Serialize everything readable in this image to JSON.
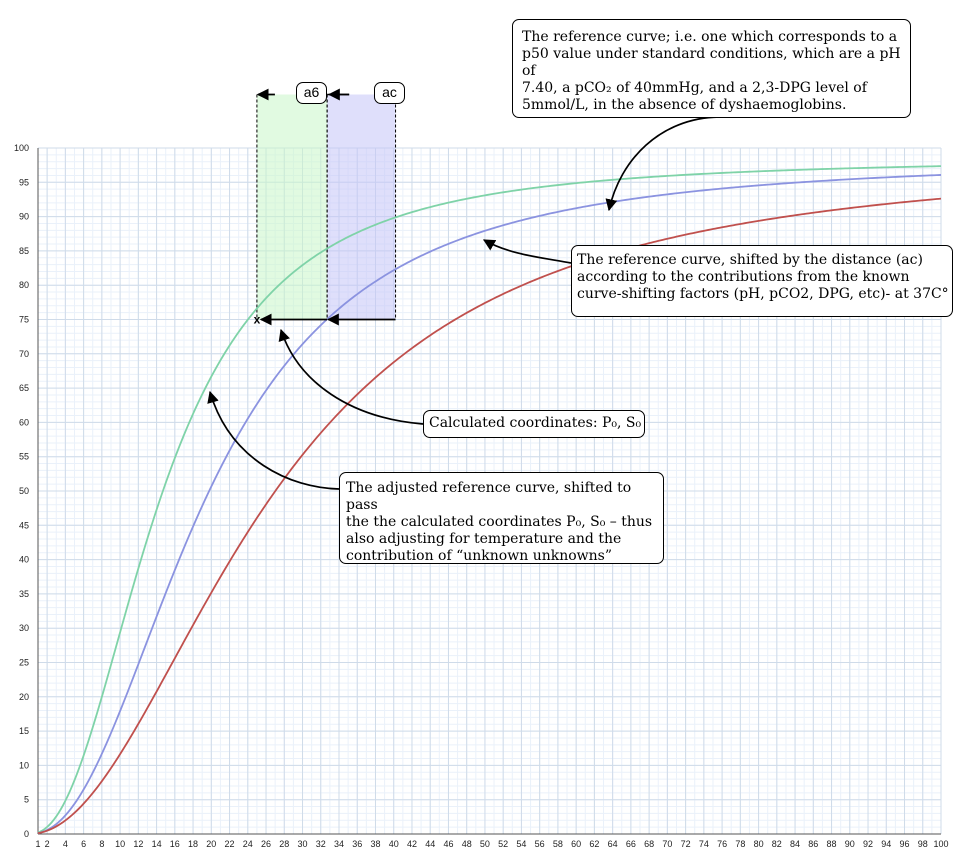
{
  "chart_data": {
    "type": "line",
    "xlim": [
      1,
      100
    ],
    "ylim": [
      0,
      100
    ],
    "x_ticks": [
      1,
      2,
      4,
      6,
      8,
      10,
      12,
      14,
      16,
      18,
      20,
      22,
      24,
      26,
      28,
      30,
      32,
      34,
      36,
      38,
      40,
      42,
      44,
      46,
      48,
      50,
      52,
      54,
      56,
      58,
      60,
      62,
      64,
      66,
      68,
      70,
      72,
      74,
      76,
      78,
      80,
      82,
      84,
      86,
      88,
      90,
      92,
      94,
      96,
      98,
      100
    ],
    "y_ticks": [
      0,
      5,
      10,
      15,
      20,
      25,
      30,
      35,
      40,
      45,
      50,
      55,
      60,
      65,
      70,
      75,
      80,
      85,
      90,
      95,
      100
    ],
    "grid": true,
    "series": [
      {
        "color": "#7fd3a8",
        "p50": 14.5,
        "n": 2.3,
        "smax": 98.5
      },
      {
        "color": "#8b93e0",
        "p50": 19.5,
        "n": 2.25,
        "smax": 98.5
      },
      {
        "color": "#c0504d",
        "p50": 26.7,
        "n": 2.05,
        "smax": 98.8
      }
    ],
    "marker": {
      "x": 25,
      "y": 75,
      "label": "x"
    },
    "shift_a6": {
      "x_from": 25,
      "x_to": 32.7,
      "label": "a6",
      "color": "#c9f5c9"
    },
    "shift_ac": {
      "x_from": 32.7,
      "x_to": 40.2,
      "label": "ac",
      "color": "#c4c4f7"
    },
    "band_top_y": 107.8,
    "annotations": {
      "reference_curve": [
        "The reference curve; i.e. one which corresponds to a",
        "p50 value under standard conditions, which are a pH of",
        "7.40, a pCO₂ of 40mmHg, and a 2,3-DPG level of",
        "5mmol/L, in the absence of dyshaemoglobins."
      ],
      "shifted_curve": [
        "The reference curve, shifted by the distance (ac)",
        "according to the contributions from the known",
        "curve-shifting factors (pH, pCO2, DPG, etc)- at 37C°"
      ],
      "calculated": "Calculated coordinates: P₀, S₀",
      "adjusted_curve": [
        "The adjusted reference curve, shifted to pass",
        "the the calculated coordinates  P₀, S₀ – thus",
        "also adjusting for temperature and the",
        "contribution of “unknown unknowns”"
      ]
    }
  }
}
